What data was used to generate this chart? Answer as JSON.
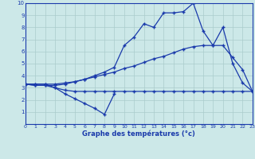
{
  "bg_color": "#cce8e8",
  "grid_color": "#aacccc",
  "line_color": "#1a3aab",
  "xlabel": "Graphe des températures (°c)",
  "xlim": [
    0,
    23
  ],
  "ylim": [
    0,
    10
  ],
  "xticks": [
    0,
    1,
    2,
    3,
    4,
    5,
    6,
    7,
    8,
    9,
    10,
    11,
    12,
    13,
    14,
    15,
    16,
    17,
    18,
    19,
    20,
    21,
    22,
    23
  ],
  "yticks": [
    1,
    2,
    3,
    4,
    5,
    6,
    7,
    8,
    9,
    10
  ],
  "line1_x": [
    0,
    1,
    2,
    3,
    4,
    5,
    6,
    7,
    8,
    9,
    10,
    11,
    12,
    13,
    14,
    15,
    16,
    17,
    18,
    19,
    20,
    21,
    22,
    23
  ],
  "line1_y": [
    3.3,
    3.2,
    3.2,
    3.2,
    3.3,
    3.5,
    3.7,
    4.0,
    4.3,
    4.7,
    6.5,
    7.2,
    8.3,
    8.0,
    9.2,
    9.2,
    9.3,
    10.0,
    7.7,
    6.5,
    8.0,
    5.0,
    3.4,
    2.7
  ],
  "line2_x": [
    0,
    1,
    2,
    3,
    4,
    5,
    6,
    7,
    8,
    9,
    10,
    11,
    12,
    13,
    14,
    15,
    16,
    17,
    18,
    19,
    20,
    21,
    22,
    23
  ],
  "line2_y": [
    3.3,
    3.3,
    3.3,
    3.3,
    3.4,
    3.5,
    3.7,
    3.9,
    4.1,
    4.3,
    4.6,
    4.8,
    5.1,
    5.4,
    5.6,
    5.9,
    6.2,
    6.4,
    6.5,
    6.5,
    6.5,
    5.5,
    4.5,
    2.7
  ],
  "line3_x": [
    0,
    1,
    2,
    3,
    4,
    5,
    6,
    7,
    8,
    9,
    10,
    11,
    12,
    13,
    14,
    15,
    16,
    17,
    18,
    19,
    20,
    21,
    22,
    23
  ],
  "line3_y": [
    3.3,
    3.3,
    3.3,
    3.0,
    2.8,
    2.7,
    2.7,
    2.7,
    2.7,
    2.7,
    2.7,
    2.7,
    2.7,
    2.7,
    2.7,
    2.7,
    2.7,
    2.7,
    2.7,
    2.7,
    2.7,
    2.7,
    2.7,
    2.7
  ],
  "line4_x": [
    0,
    1,
    2,
    3,
    4,
    5,
    6,
    7,
    8,
    9
  ],
  "line4_y": [
    3.3,
    3.2,
    3.2,
    3.0,
    2.5,
    2.1,
    1.7,
    1.3,
    0.8,
    2.5
  ],
  "marker": "+",
  "markersize": 3,
  "linewidth": 0.9
}
